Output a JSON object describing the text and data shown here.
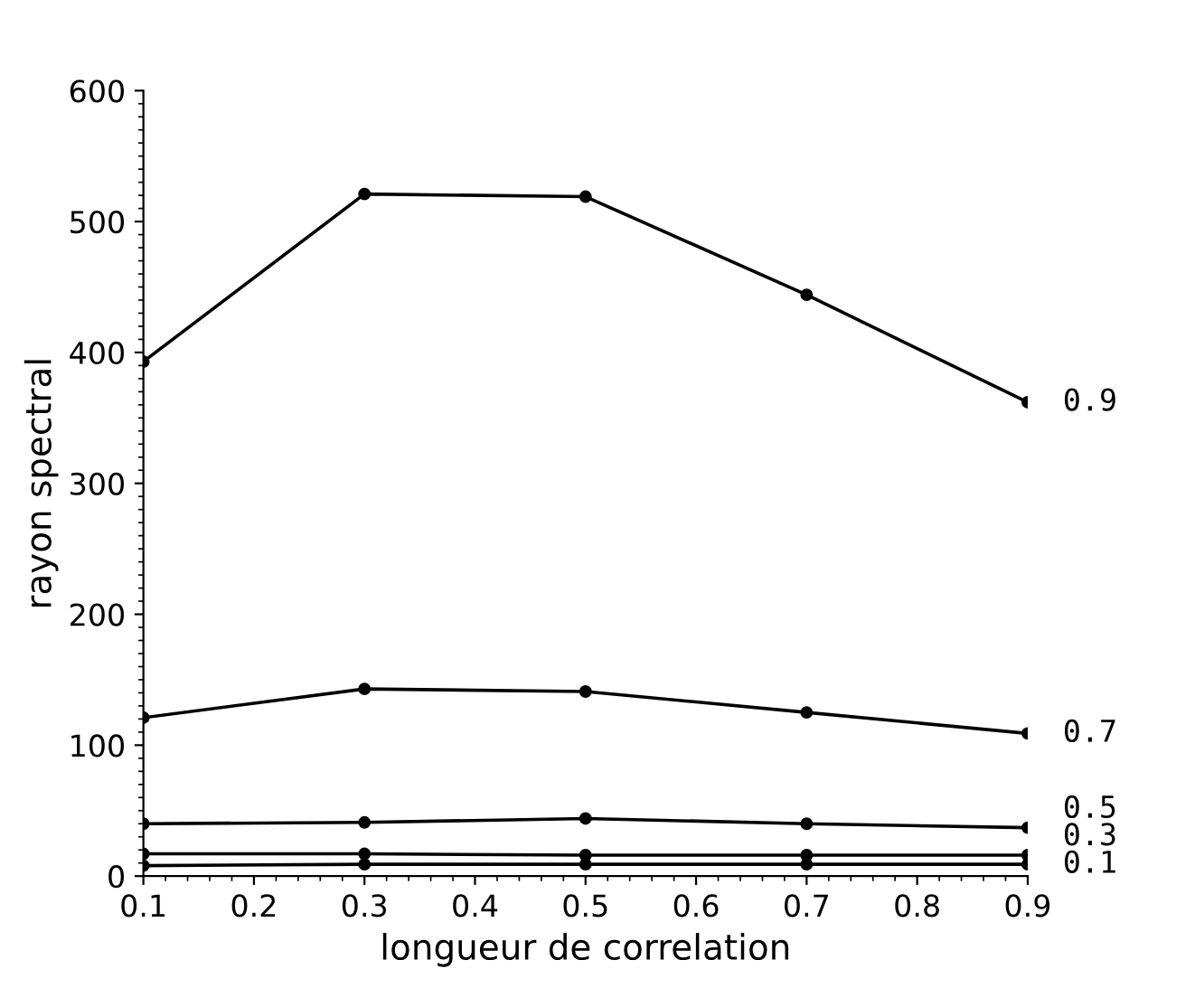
{
  "chart_data": {
    "type": "line",
    "xlabel": "longueur de correlation",
    "ylabel": "rayon spectral",
    "x": [
      0.1,
      0.3,
      0.5,
      0.7,
      0.9
    ],
    "xlim": [
      0.1,
      0.9
    ],
    "xticks": [
      0.1,
      0.2,
      0.3,
      0.4,
      0.5,
      0.6,
      0.7,
      0.8,
      0.9
    ],
    "ylim": [
      0,
      600
    ],
    "yticks": [
      0,
      100,
      200,
      300,
      400,
      500,
      600
    ],
    "grid": false,
    "legend": false,
    "marker": "circle",
    "line_style": "solid",
    "series": [
      {
        "name": "0.9",
        "color": "#000000",
        "values": [
          393,
          521,
          519,
          444,
          362
        ]
      },
      {
        "name": "0.7",
        "color": "#000000",
        "values": [
          121,
          143,
          141,
          125,
          109
        ]
      },
      {
        "name": "0.5",
        "color": "#000000",
        "values": [
          40,
          41,
          44,
          40,
          37
        ]
      },
      {
        "name": "0.3",
        "color": "#000000",
        "values": [
          17,
          17,
          16,
          16,
          16
        ]
      },
      {
        "name": "0.1",
        "color": "#000000",
        "values": [
          8,
          9,
          9,
          9,
          9
        ]
      }
    ]
  }
}
